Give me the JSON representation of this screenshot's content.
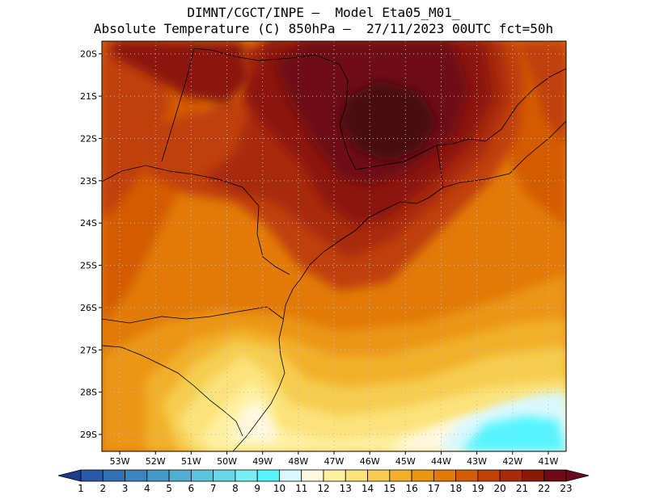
{
  "title": {
    "line1": "DIMNT/CGCT/INPE –  Model Eta05_M01_",
    "line2": "Absolute Temperature (C) 850hPa –  27/11/2023 00UTC fct=50h"
  },
  "map": {
    "lat_range": [
      -29.4,
      -19.7
    ],
    "lon_range": [
      -53.5,
      -40.5
    ],
    "lat_ticks": [
      {
        "value": -20,
        "label": "20S"
      },
      {
        "value": -21,
        "label": "21S"
      },
      {
        "value": -22,
        "label": "22S"
      },
      {
        "value": -23,
        "label": "23S"
      },
      {
        "value": -24,
        "label": "24S"
      },
      {
        "value": -25,
        "label": "25S"
      },
      {
        "value": -26,
        "label": "26S"
      },
      {
        "value": -27,
        "label": "27S"
      },
      {
        "value": -28,
        "label": "28S"
      },
      {
        "value": -29,
        "label": "29S"
      }
    ],
    "lon_ticks": [
      {
        "value": -53,
        "label": "53W"
      },
      {
        "value": -52,
        "label": "52W"
      },
      {
        "value": -51,
        "label": "51W"
      },
      {
        "value": -50,
        "label": "50W"
      },
      {
        "value": -49,
        "label": "49W"
      },
      {
        "value": -48,
        "label": "48W"
      },
      {
        "value": -47,
        "label": "47W"
      },
      {
        "value": -46,
        "label": "46W"
      },
      {
        "value": -45,
        "label": "45W"
      },
      {
        "value": -44,
        "label": "44W"
      },
      {
        "value": -43,
        "label": "43W"
      },
      {
        "value": -42,
        "label": "42W"
      },
      {
        "value": -41,
        "label": "41W"
      }
    ],
    "grid": "dotted"
  },
  "colorbar": {
    "labels": [
      "1",
      "2",
      "3",
      "4",
      "5",
      "6",
      "7",
      "8",
      "9",
      "10",
      "11",
      "12",
      "13",
      "14",
      "15",
      "16",
      "17",
      "18",
      "19",
      "20",
      "21",
      "22",
      "23"
    ],
    "colors": [
      "#1f3b8c",
      "#2a5aa6",
      "#336fb3",
      "#3b84bf",
      "#4599c9",
      "#50aed2",
      "#5cc4dc",
      "#69d8e6",
      "#7aeef2",
      "#55f5ff",
      "#d8f8ff",
      "#fff8e0",
      "#fff0a0",
      "#fbe27a",
      "#f6cd50",
      "#f2b02a",
      "#eb9612",
      "#e27a08",
      "#d45c06",
      "#c04008",
      "#a82a08",
      "#8c1808",
      "#6e0a14",
      "#6a0820"
    ]
  }
}
